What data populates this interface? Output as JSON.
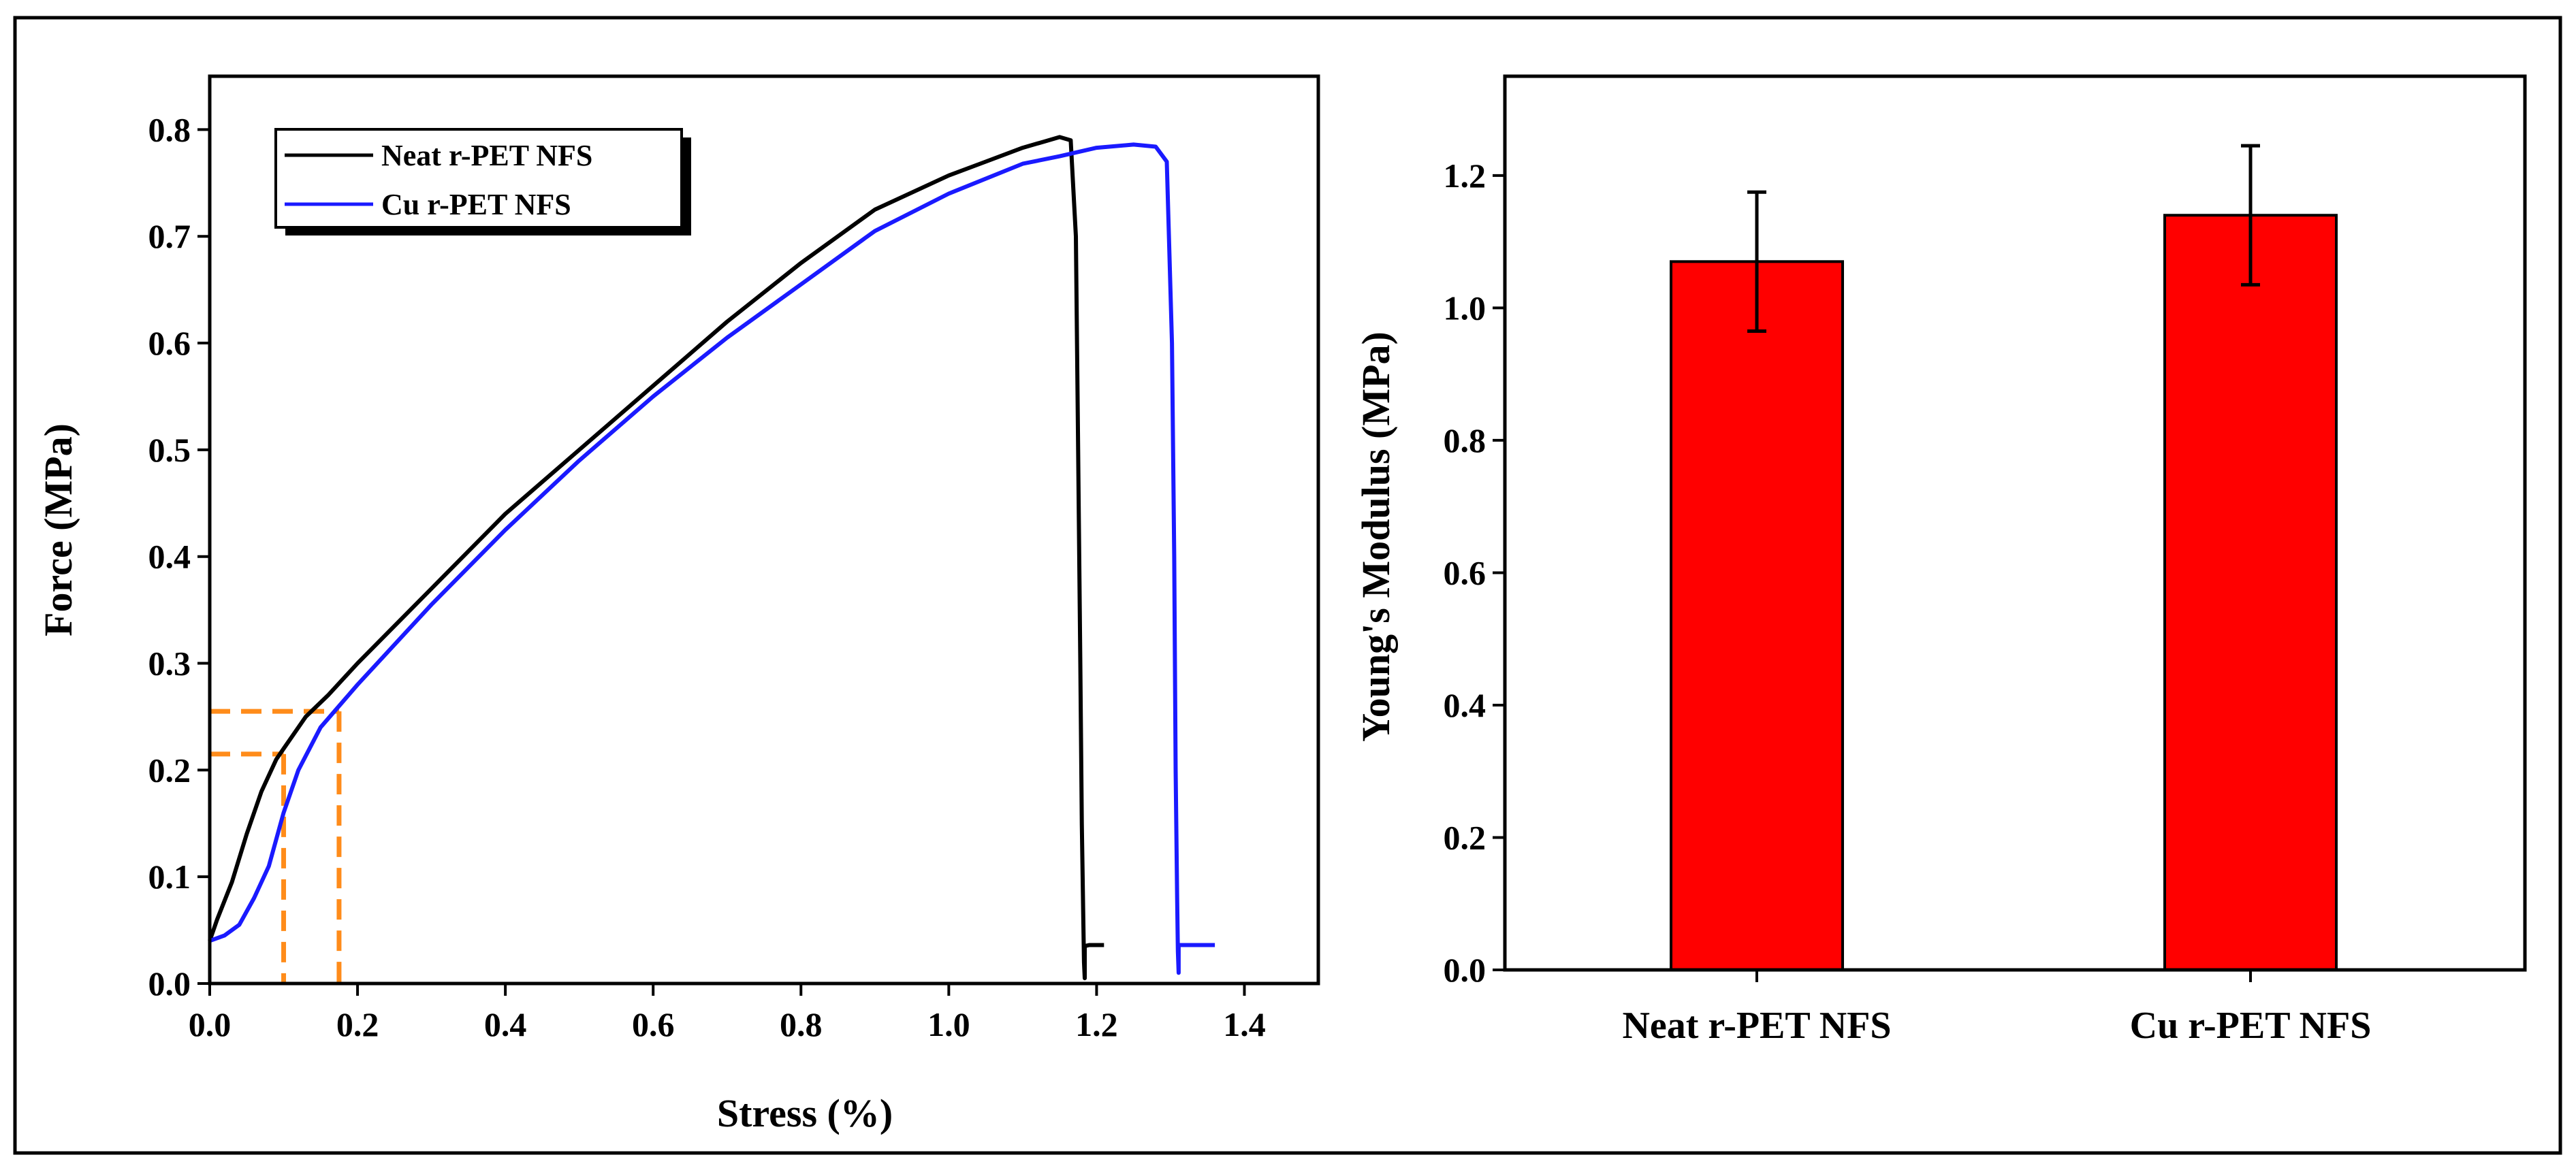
{
  "colors": {
    "neat_line": "#000000",
    "cu_line": "#1a1aff",
    "bar_fill": "#ff0000",
    "guide": "#ff8c1a",
    "frame": "#000000"
  },
  "chart_data": [
    {
      "type": "line",
      "title": "",
      "xlabel": "Stress (%)",
      "ylabel": "Force (MPa)",
      "xlim": [
        0.0,
        1.5
      ],
      "ylim": [
        0.0,
        0.85
      ],
      "xticks": [
        "0.0",
        "0.2",
        "0.4",
        "0.6",
        "0.8",
        "1.0",
        "1.2",
        "1.4"
      ],
      "xtick_values": [
        0.0,
        0.2,
        0.4,
        0.6,
        0.8,
        1.0,
        1.2,
        1.4
      ],
      "yticks": [
        "0.0",
        "0.1",
        "0.2",
        "0.3",
        "0.4",
        "0.5",
        "0.6",
        "0.7",
        "0.8"
      ],
      "ytick_values": [
        0.0,
        0.1,
        0.2,
        0.3,
        0.4,
        0.5,
        0.6,
        0.7,
        0.8
      ],
      "grid": false,
      "legend_position": "top-left",
      "series": [
        {
          "name": "Neat r-PET NFS",
          "color_key": "neat_line",
          "x": [
            0.0,
            0.01,
            0.03,
            0.05,
            0.07,
            0.09,
            0.1,
            0.13,
            0.16,
            0.2,
            0.3,
            0.4,
            0.5,
            0.6,
            0.7,
            0.8,
            0.9,
            1.0,
            1.05,
            1.1,
            1.13,
            1.15,
            1.165,
            1.172,
            1.175,
            1.178,
            1.18,
            1.182,
            1.183,
            1.184,
            1.184,
            1.19,
            1.2,
            1.21
          ],
          "y": [
            0.04,
            0.06,
            0.095,
            0.14,
            0.18,
            0.21,
            0.22,
            0.25,
            0.27,
            0.3,
            0.37,
            0.44,
            0.5,
            0.56,
            0.62,
            0.675,
            0.725,
            0.757,
            0.77,
            0.783,
            0.789,
            0.793,
            0.79,
            0.7,
            0.5,
            0.3,
            0.15,
            0.06,
            0.02,
            0.005,
            0.035,
            0.036,
            0.036,
            0.036
          ]
        },
        {
          "name": "Cu r-PET NFS",
          "color_key": "cu_line",
          "x": [
            0.0,
            0.02,
            0.04,
            0.06,
            0.08,
            0.1,
            0.12,
            0.15,
            0.2,
            0.3,
            0.4,
            0.5,
            0.6,
            0.7,
            0.8,
            0.9,
            1.0,
            1.1,
            1.15,
            1.2,
            1.25,
            1.28,
            1.295,
            1.302,
            1.305,
            1.307,
            1.309,
            1.31,
            1.311,
            1.311,
            1.32,
            1.34,
            1.36
          ],
          "y": [
            0.04,
            0.045,
            0.055,
            0.08,
            0.11,
            0.16,
            0.2,
            0.24,
            0.28,
            0.355,
            0.425,
            0.49,
            0.55,
            0.605,
            0.655,
            0.705,
            0.74,
            0.768,
            0.775,
            0.783,
            0.786,
            0.784,
            0.77,
            0.6,
            0.4,
            0.2,
            0.08,
            0.03,
            0.01,
            0.036,
            0.036,
            0.036,
            0.036
          ]
        }
      ],
      "guides": [
        {
          "x": 0.1,
          "y": 0.215
        },
        {
          "x": 0.175,
          "y": 0.255
        }
      ]
    },
    {
      "type": "bar",
      "title": "",
      "xlabel": "",
      "ylabel": "Young's Modulus (MPa)",
      "ylim": [
        0.0,
        1.35
      ],
      "yticks": [
        "0.0",
        "0.2",
        "0.4",
        "0.6",
        "0.8",
        "1.0",
        "1.2"
      ],
      "ytick_values": [
        0.0,
        0.2,
        0.4,
        0.6,
        0.8,
        1.0,
        1.2
      ],
      "categories": [
        "Neat r-PET NFS",
        "Cu r-PET NFS"
      ],
      "values": [
        1.07,
        1.14
      ],
      "errors": [
        0.105,
        0.105
      ],
      "grid": false
    }
  ]
}
